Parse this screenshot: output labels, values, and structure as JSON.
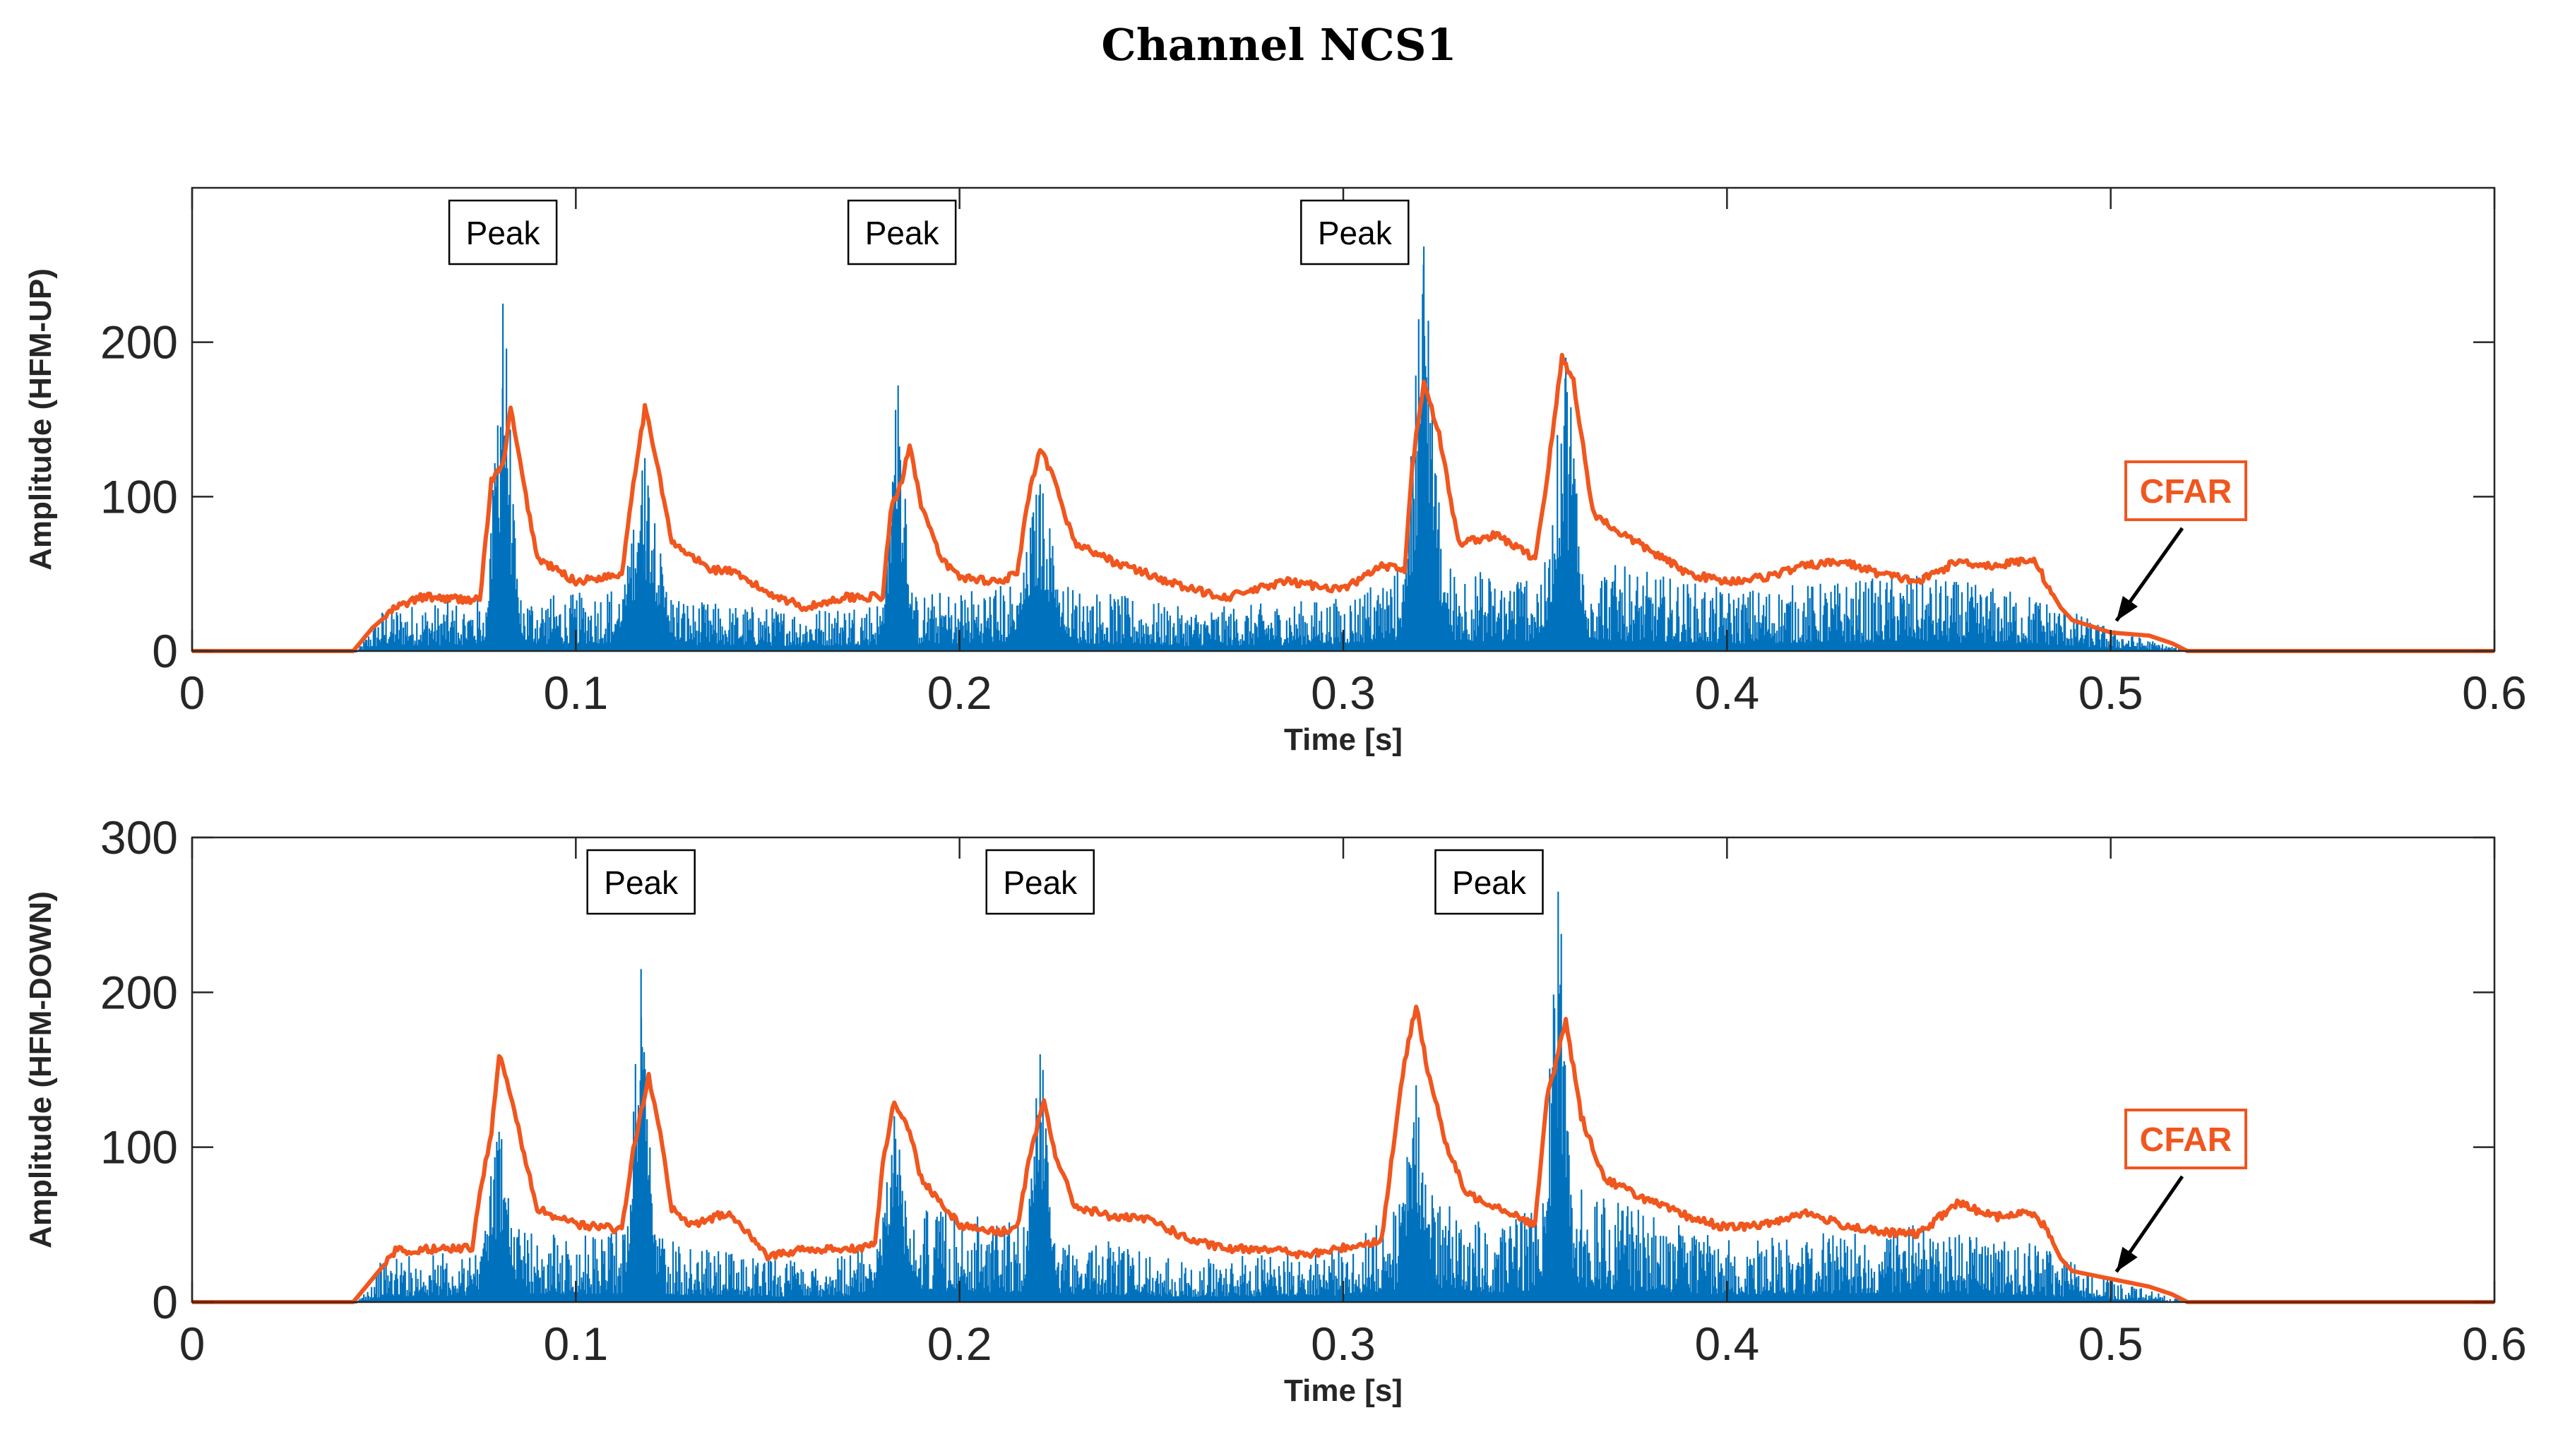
{
  "title": "Channel NCS1",
  "colors": {
    "signal": "#0072BD",
    "cfar": "#F0561E",
    "axis": "#262626"
  },
  "chart_data": [
    {
      "type": "line",
      "ylabel": "Amplitude (HFM-UP)",
      "xlabel": "Time [s]",
      "xlim": [
        0,
        0.6
      ],
      "ylim": [
        0,
        300
      ],
      "xticks": [
        0,
        0.1,
        0.2,
        0.3,
        0.4,
        0.5,
        0.6
      ],
      "xtick_labels": [
        "0",
        "0.1",
        "0.2",
        "0.3",
        "0.4",
        "0.5",
        "0.6"
      ],
      "yticks": [
        0,
        100,
        200
      ],
      "ytick_labels": [
        "0",
        "100",
        "200"
      ],
      "series": [
        {
          "name": "Signal",
          "color": "#0072BD",
          "baseline": [
            [
              0.043,
              0
            ],
            [
              0.05,
              24
            ],
            [
              0.07,
              26
            ],
            [
              0.08,
              30
            ],
            [
              0.1,
              30
            ],
            [
              0.12,
              40
            ],
            [
              0.13,
              26
            ],
            [
              0.16,
              22
            ],
            [
              0.19,
              30
            ],
            [
              0.22,
              38
            ],
            [
              0.26,
              22
            ],
            [
              0.3,
              28
            ],
            [
              0.32,
              50
            ],
            [
              0.34,
              40
            ],
            [
              0.36,
              50
            ],
            [
              0.4,
              32
            ],
            [
              0.45,
              40
            ],
            [
              0.48,
              30
            ],
            [
              0.5,
              12
            ],
            [
              0.52,
              0
            ]
          ],
          "peaks": [
            [
              0.081,
              225,
              0.003
            ],
            [
              0.118,
              125,
              0.005
            ],
            [
              0.184,
              172,
              0.003
            ],
            [
              0.221,
              108,
              0.005
            ],
            [
              0.321,
              262,
              0.004
            ],
            [
              0.358,
              190,
              0.004
            ]
          ]
        },
        {
          "name": "CFAR",
          "color": "#F0561E",
          "points": [
            [
              0,
              0
            ],
            [
              0.042,
              0
            ],
            [
              0.047,
              15
            ],
            [
              0.053,
              28
            ],
            [
              0.06,
              35
            ],
            [
              0.075,
              33
            ],
            [
              0.078,
              110
            ],
            [
              0.081,
              120
            ],
            [
              0.083,
              157
            ],
            [
              0.087,
              100
            ],
            [
              0.09,
              60
            ],
            [
              0.1,
              45
            ],
            [
              0.112,
              50
            ],
            [
              0.115,
              110
            ],
            [
              0.118,
              157
            ],
            [
              0.121,
              125
            ],
            [
              0.125,
              70
            ],
            [
              0.135,
              53
            ],
            [
              0.14,
              52
            ],
            [
              0.15,
              38
            ],
            [
              0.16,
              28
            ],
            [
              0.17,
              35
            ],
            [
              0.18,
              35
            ],
            [
              0.182,
              90
            ],
            [
              0.185,
              110
            ],
            [
              0.187,
              135
            ],
            [
              0.19,
              95
            ],
            [
              0.195,
              60
            ],
            [
              0.2,
              48
            ],
            [
              0.21,
              45
            ],
            [
              0.215,
              50
            ],
            [
              0.218,
              100
            ],
            [
              0.221,
              130
            ],
            [
              0.224,
              115
            ],
            [
              0.23,
              70
            ],
            [
              0.24,
              58
            ],
            [
              0.26,
              40
            ],
            [
              0.27,
              35
            ],
            [
              0.285,
              45
            ],
            [
              0.3,
              40
            ],
            [
              0.31,
              55
            ],
            [
              0.316,
              52
            ],
            [
              0.318,
              120
            ],
            [
              0.321,
              175
            ],
            [
              0.325,
              140
            ],
            [
              0.33,
              70
            ],
            [
              0.34,
              75
            ],
            [
              0.35,
              60
            ],
            [
              0.353,
              110
            ],
            [
              0.357,
              190
            ],
            [
              0.36,
              175
            ],
            [
              0.365,
              90
            ],
            [
              0.37,
              80
            ],
            [
              0.38,
              65
            ],
            [
              0.39,
              50
            ],
            [
              0.4,
              45
            ],
            [
              0.41,
              48
            ],
            [
              0.42,
              55
            ],
            [
              0.43,
              58
            ],
            [
              0.44,
              50
            ],
            [
              0.45,
              45
            ],
            [
              0.46,
              58
            ],
            [
              0.47,
              55
            ],
            [
              0.48,
              60
            ],
            [
              0.483,
              45
            ],
            [
              0.487,
              28
            ],
            [
              0.49,
              20
            ],
            [
              0.5,
              12
            ],
            [
              0.51,
              10
            ],
            [
              0.516,
              5
            ],
            [
              0.52,
              0
            ]
          ]
        }
      ],
      "annotations": [
        {
          "text": "Peak",
          "x": 0.081
        },
        {
          "text": "Peak",
          "x": 0.185
        },
        {
          "text": "Peak",
          "x": 0.303
        },
        {
          "text": "CFAR",
          "x": 0.5,
          "y": 15
        }
      ]
    },
    {
      "type": "line",
      "ylabel": "Amplitude (HFM-DOWN)",
      "xlabel": "Time [s]",
      "xlim": [
        0,
        0.6
      ],
      "ylim": [
        0,
        300
      ],
      "xticks": [
        0,
        0.1,
        0.2,
        0.3,
        0.4,
        0.5,
        0.6
      ],
      "xtick_labels": [
        "0",
        "0.1",
        "0.2",
        "0.3",
        "0.4",
        "0.5",
        "0.6"
      ],
      "yticks": [
        0,
        100,
        200,
        300
      ],
      "ytick_labels": [
        "0",
        "100",
        "200",
        "300"
      ],
      "series": [
        {
          "name": "Signal",
          "color": "#0072BD",
          "baseline": [
            [
              0.043,
              0
            ],
            [
              0.05,
              24
            ],
            [
              0.07,
              26
            ],
            [
              0.08,
              40
            ],
            [
              0.1,
              34
            ],
            [
              0.12,
              40
            ],
            [
              0.13,
              28
            ],
            [
              0.16,
              22
            ],
            [
              0.18,
              30
            ],
            [
              0.19,
              50
            ],
            [
              0.22,
              40
            ],
            [
              0.26,
              22
            ],
            [
              0.3,
              28
            ],
            [
              0.32,
              60
            ],
            [
              0.34,
              40
            ],
            [
              0.36,
              60
            ],
            [
              0.4,
              32
            ],
            [
              0.45,
              40
            ],
            [
              0.48,
              30
            ],
            [
              0.5,
              12
            ],
            [
              0.52,
              0
            ]
          ],
          "peaks": [
            [
              0.08,
              110,
              0.004
            ],
            [
              0.117,
              215,
              0.003
            ],
            [
              0.183,
              120,
              0.004
            ],
            [
              0.221,
              160,
              0.003
            ],
            [
              0.319,
              140,
              0.004
            ],
            [
              0.356,
              265,
              0.003
            ]
          ]
        },
        {
          "name": "CFAR",
          "color": "#F0561E",
          "points": [
            [
              0,
              0
            ],
            [
              0.042,
              0
            ],
            [
              0.047,
              15
            ],
            [
              0.053,
              33
            ],
            [
              0.06,
              34
            ],
            [
              0.073,
              35
            ],
            [
              0.075,
              70
            ],
            [
              0.078,
              110
            ],
            [
              0.08,
              160
            ],
            [
              0.083,
              135
            ],
            [
              0.087,
              90
            ],
            [
              0.09,
              60
            ],
            [
              0.1,
              50
            ],
            [
              0.112,
              47
            ],
            [
              0.115,
              100
            ],
            [
              0.119,
              145
            ],
            [
              0.122,
              110
            ],
            [
              0.125,
              60
            ],
            [
              0.13,
              50
            ],
            [
              0.14,
              58
            ],
            [
              0.145,
              45
            ],
            [
              0.15,
              30
            ],
            [
              0.16,
              34
            ],
            [
              0.17,
              34
            ],
            [
              0.178,
              37
            ],
            [
              0.18,
              90
            ],
            [
              0.183,
              130
            ],
            [
              0.187,
              110
            ],
            [
              0.19,
              80
            ],
            [
              0.2,
              50
            ],
            [
              0.21,
              45
            ],
            [
              0.215,
              48
            ],
            [
              0.218,
              90
            ],
            [
              0.222,
              130
            ],
            [
              0.225,
              95
            ],
            [
              0.23,
              62
            ],
            [
              0.24,
              55
            ],
            [
              0.25,
              53
            ],
            [
              0.26,
              40
            ],
            [
              0.27,
              34
            ],
            [
              0.28,
              35
            ],
            [
              0.29,
              30
            ],
            [
              0.3,
              35
            ],
            [
              0.31,
              40
            ],
            [
              0.313,
              100
            ],
            [
              0.316,
              155
            ],
            [
              0.319,
              192
            ],
            [
              0.322,
              150
            ],
            [
              0.327,
              100
            ],
            [
              0.332,
              70
            ],
            [
              0.34,
              62
            ],
            [
              0.35,
              50
            ],
            [
              0.353,
              130
            ],
            [
              0.358,
              182
            ],
            [
              0.362,
              120
            ],
            [
              0.368,
              80
            ],
            [
              0.38,
              65
            ],
            [
              0.39,
              55
            ],
            [
              0.4,
              48
            ],
            [
              0.41,
              50
            ],
            [
              0.42,
              58
            ],
            [
              0.43,
              50
            ],
            [
              0.44,
              45
            ],
            [
              0.45,
              44
            ],
            [
              0.46,
              64
            ],
            [
              0.47,
              55
            ],
            [
              0.48,
              58
            ],
            [
              0.483,
              48
            ],
            [
              0.487,
              28
            ],
            [
              0.49,
              20
            ],
            [
              0.5,
              15
            ],
            [
              0.51,
              10
            ],
            [
              0.516,
              5
            ],
            [
              0.52,
              0
            ]
          ]
        }
      ],
      "annotations": [
        {
          "text": "Peak",
          "x": 0.117
        },
        {
          "text": "Peak",
          "x": 0.221
        },
        {
          "text": "Peak",
          "x": 0.338
        },
        {
          "text": "CFAR",
          "x": 0.5,
          "y": 15
        }
      ]
    }
  ]
}
